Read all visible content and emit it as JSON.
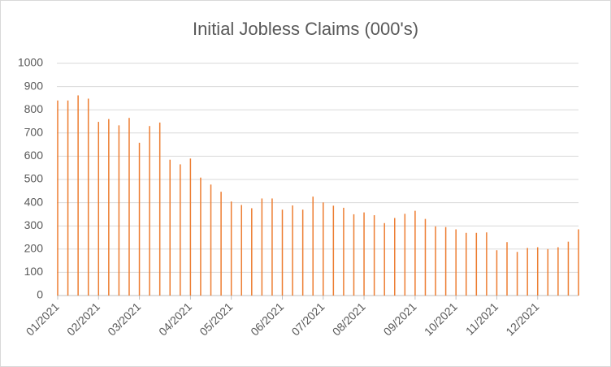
{
  "chart_data": {
    "type": "bar",
    "title": "Initial Jobless Claims (000's)",
    "categories": [
      "01/2021",
      null,
      null,
      null,
      "02/2021",
      null,
      null,
      null,
      "03/2021",
      null,
      null,
      null,
      null,
      "04/2021",
      null,
      null,
      null,
      "05/2021",
      null,
      null,
      null,
      null,
      "06/2021",
      null,
      null,
      null,
      "07/2021",
      null,
      null,
      null,
      "08/2021",
      null,
      null,
      null,
      null,
      "09/2021",
      null,
      null,
      null,
      "10/2021",
      null,
      null,
      null,
      "11/2021",
      null,
      null,
      null,
      "12/2021",
      null,
      null,
      null,
      null
    ],
    "values": [
      840,
      840,
      862,
      848,
      748,
      760,
      733,
      765,
      658,
      730,
      745,
      585,
      565,
      590,
      508,
      478,
      447,
      405,
      390,
      376,
      418,
      418,
      370,
      388,
      370,
      426,
      401,
      387,
      378,
      350,
      358,
      346,
      312,
      334,
      352,
      365,
      330,
      298,
      295,
      285,
      270,
      270,
      272,
      195,
      230,
      188,
      205,
      208,
      200,
      208,
      232,
      285
    ],
    "color": "#ed7d31",
    "ylim": [
      0,
      1000
    ],
    "yticks": [
      0,
      100,
      200,
      300,
      400,
      500,
      600,
      700,
      800,
      900,
      1000
    ],
    "grid": true
  }
}
